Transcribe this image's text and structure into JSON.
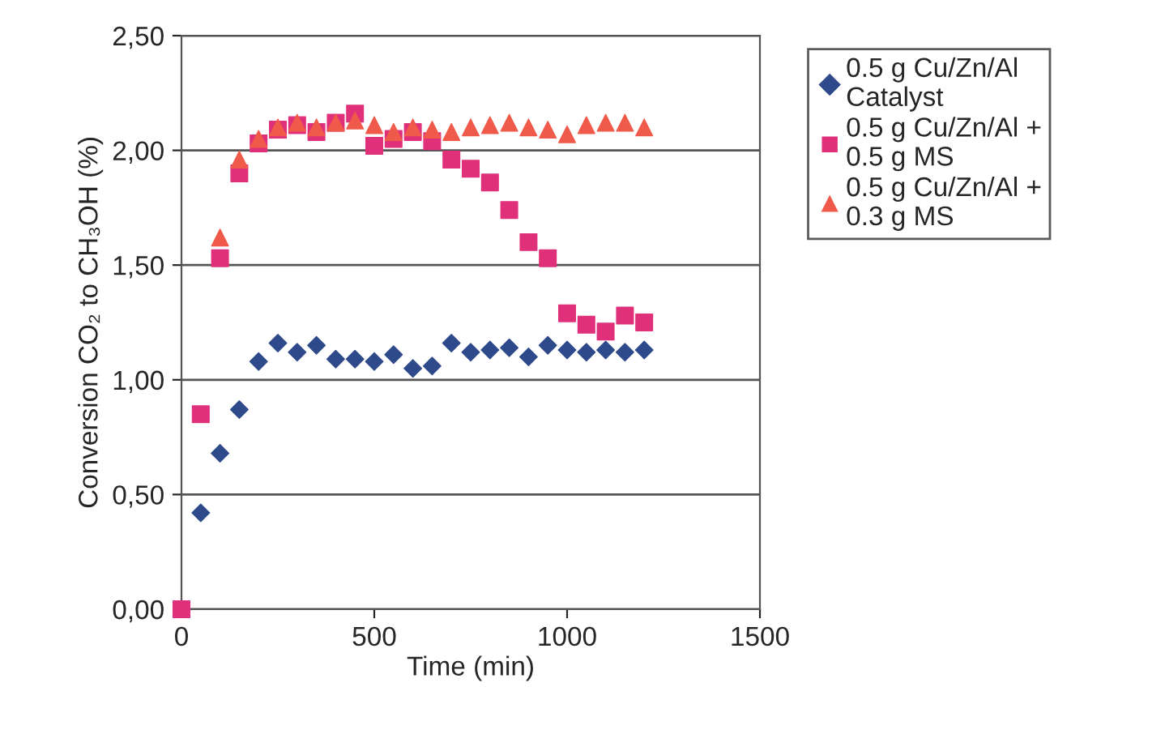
{
  "chart_data": {
    "type": "scatter",
    "xlabel": "Time (min)",
    "ylabel": "Conversion CO₂ to CH₃OH (%)",
    "xlim": [
      0,
      1500
    ],
    "xticks": [
      0,
      500,
      1000,
      1500
    ],
    "ylim": [
      0,
      2.5
    ],
    "yticks": [
      {
        "value": 0,
        "label": "0,00"
      },
      {
        "value": 0.5,
        "label": "0,50"
      },
      {
        "value": 1,
        "label": "1,00"
      },
      {
        "value": 1.5,
        "label": "1,50"
      },
      {
        "value": 2,
        "label": "2,00"
      },
      {
        "value": 2.5,
        "label": "2,50"
      }
    ],
    "grid": "y",
    "legend": "right",
    "series": [
      {
        "name": "0.5 g Cu/Zn/Al\nCatalyst",
        "color": "#2f4a8a",
        "marker": "diamond",
        "x": [
          50,
          100,
          150,
          200,
          250,
          300,
          350,
          400,
          450,
          500,
          550,
          600,
          650,
          700,
          750,
          800,
          850,
          900,
          950,
          1000,
          1050,
          1100,
          1150,
          1200
        ],
        "values": [
          0.42,
          0.68,
          0.87,
          1.08,
          1.16,
          1.12,
          1.15,
          1.09,
          1.09,
          1.08,
          1.11,
          1.05,
          1.06,
          1.16,
          1.12,
          1.13,
          1.14,
          1.1,
          1.15,
          1.13,
          1.12,
          1.13,
          1.12,
          1.13
        ]
      },
      {
        "name": "0.5 g Cu/Zn/Al +\n0.5 g MS",
        "color": "#e0307a",
        "marker": "square",
        "x": [
          0,
          50,
          100,
          150,
          200,
          250,
          300,
          350,
          400,
          450,
          500,
          550,
          600,
          650,
          700,
          750,
          800,
          850,
          900,
          950,
          1000,
          1050,
          1100,
          1150,
          1200
        ],
        "values": [
          0,
          0.85,
          1.53,
          1.9,
          2.03,
          2.09,
          2.11,
          2.08,
          2.12,
          2.16,
          2.02,
          2.05,
          2.08,
          2.04,
          1.96,
          1.92,
          1.86,
          1.74,
          1.6,
          1.53,
          1.29,
          1.24,
          1.21,
          1.28,
          1.25
        ]
      },
      {
        "name": "0.5 g Cu/Zn/Al +\n0.3 g MS",
        "color": "#f05a4a",
        "marker": "triangle",
        "x": [
          100,
          150,
          200,
          250,
          300,
          350,
          400,
          450,
          500,
          550,
          600,
          650,
          700,
          750,
          800,
          850,
          900,
          950,
          1000,
          1050,
          1100,
          1150,
          1200
        ],
        "values": [
          1.62,
          1.96,
          2.05,
          2.1,
          2.12,
          2.1,
          2.12,
          2.13,
          2.11,
          2.08,
          2.1,
          2.09,
          2.08,
          2.1,
          2.11,
          2.12,
          2.1,
          2.09,
          2.07,
          2.11,
          2.12,
          2.12,
          2.1
        ]
      }
    ]
  }
}
